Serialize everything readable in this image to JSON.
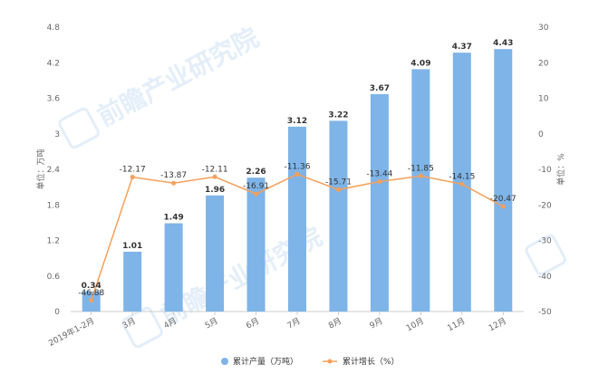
{
  "chart_data": {
    "type": "bar+line",
    "categories": [
      "2019年1-2月",
      "3月",
      "4月",
      "5月",
      "6月",
      "7月",
      "8月",
      "9月",
      "10月",
      "11月",
      "12月"
    ],
    "series": [
      {
        "name": "累计产量（万吨）",
        "type": "bar",
        "axis": "left",
        "values": [
          0.34,
          1.01,
          1.49,
          1.96,
          2.26,
          3.12,
          3.22,
          3.67,
          4.09,
          4.37,
          4.43
        ],
        "labels": [
          "0.34",
          "1.01",
          "1.49",
          "1.96",
          "2.26",
          "3.12",
          "3.22",
          "3.67",
          "4.09",
          "4.37",
          "4.43"
        ],
        "color": "#7eb4e8"
      },
      {
        "name": "累计增长（%）",
        "type": "line",
        "axis": "right",
        "values": [
          -46.88,
          -12.17,
          -13.87,
          -12.11,
          -16.91,
          -11.36,
          -15.71,
          -13.44,
          -11.85,
          -14.15,
          -20.47
        ],
        "labels": [
          "-46.88",
          "-12.17",
          "-13.87",
          "-12.11",
          "-16.91",
          "-11.36",
          "-15.71",
          "-13.44",
          "-11.85",
          "-14.15",
          "-20.47"
        ],
        "color": "#f5a05a"
      }
    ],
    "left_axis": {
      "label": "单位：万吨",
      "ylim": [
        0,
        4.8
      ],
      "ticks": [
        0,
        0.6,
        1.2,
        1.8,
        2.4,
        3,
        3.6,
        4.2,
        4.8
      ],
      "tick_labels": [
        "0",
        "0.6",
        "1.2",
        "1.8",
        "2.4",
        "3",
        "3.6",
        "4.2",
        "4.8"
      ]
    },
    "right_axis": {
      "label": "单位：%",
      "ylim": [
        -50,
        30
      ],
      "ticks": [
        -50,
        -40,
        -30,
        -20,
        -10,
        0,
        10,
        20,
        30
      ],
      "tick_labels": [
        "-50",
        "-40",
        "-30",
        "-20",
        "-10",
        "0",
        "10",
        "20",
        "30"
      ]
    },
    "grid": false,
    "legend": "bottom-center",
    "legend_items": [
      "累计产量（万吨）",
      "累计增长（%）"
    ],
    "watermark": "前瞻产业研究院"
  }
}
